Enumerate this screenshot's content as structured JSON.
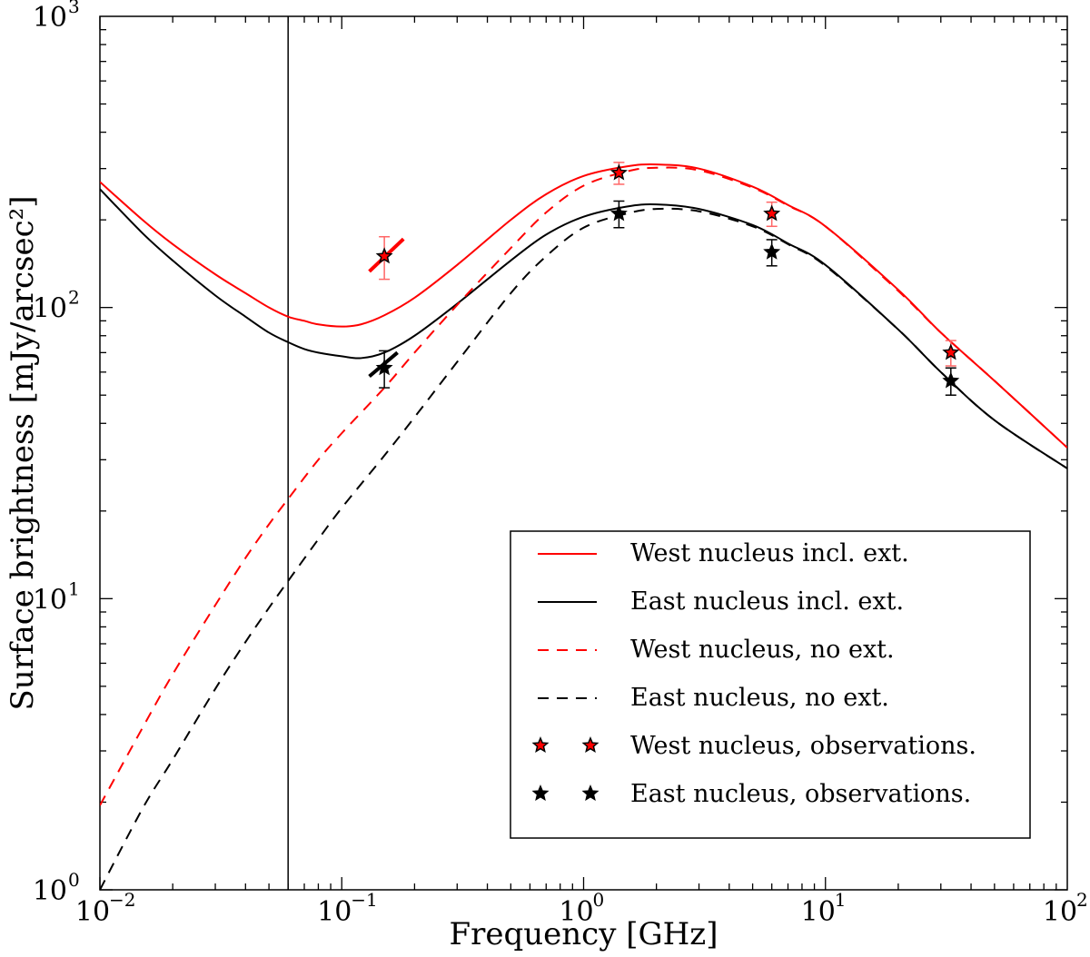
{
  "chart_data": {
    "type": "line",
    "title": "",
    "xlabel": "Frequency [GHz]",
    "ylabel": "Surface brightness [mJy/arcsec²]",
    "xscale": "log",
    "yscale": "log",
    "xlim": [
      0.01,
      100
    ],
    "ylim": [
      1,
      1000
    ],
    "x_ticks": [
      {
        "value": 0.01,
        "base": "10",
        "exp": "−2"
      },
      {
        "value": 0.1,
        "base": "10",
        "exp": "−1"
      },
      {
        "value": 1,
        "base": "10",
        "exp": "0"
      },
      {
        "value": 10,
        "base": "10",
        "exp": "1"
      },
      {
        "value": 100,
        "base": "10",
        "exp": "2"
      }
    ],
    "y_ticks": [
      {
        "value": 1,
        "base": "10",
        "exp": "0"
      },
      {
        "value": 10,
        "base": "10",
        "exp": "1"
      },
      {
        "value": 100,
        "base": "10",
        "exp": "2"
      },
      {
        "value": 1000,
        "base": "10",
        "exp": "3"
      }
    ],
    "vertical_line": {
      "x": 0.06
    },
    "legend_position": "bottom-right",
    "series": [
      {
        "name": "West nucleus incl. ext.",
        "style": "solid",
        "color": "#ff0000",
        "x": [
          0.01,
          0.015,
          0.02,
          0.03,
          0.04,
          0.05,
          0.06,
          0.07,
          0.08,
          0.1,
          0.12,
          0.15,
          0.2,
          0.3,
          0.5,
          0.7,
          1.0,
          1.5,
          2.0,
          3.0,
          5.0,
          7.0,
          10,
          20,
          30,
          50,
          100
        ],
        "y": [
          270,
          200,
          165,
          130,
          112,
          100,
          93,
          90,
          87.5,
          86,
          87.5,
          94,
          108,
          140,
          200,
          245,
          283,
          305,
          310,
          300,
          260,
          225,
          190,
          115,
          82,
          56,
          33
        ]
      },
      {
        "name": "East nucleus incl. ext.",
        "style": "solid",
        "color": "#000000",
        "x": [
          0.01,
          0.015,
          0.02,
          0.03,
          0.04,
          0.05,
          0.06,
          0.07,
          0.08,
          0.1,
          0.12,
          0.15,
          0.2,
          0.3,
          0.5,
          0.7,
          1.0,
          1.5,
          2.0,
          3.0,
          5.0,
          7.0,
          10,
          20,
          30,
          50,
          100
        ],
        "y": [
          255,
          180,
          145,
          110,
          93,
          82,
          76,
          72,
          70,
          68,
          67,
          70,
          80,
          103,
          145,
          178,
          205,
          222,
          226,
          218,
          192,
          166,
          140,
          84,
          60,
          41,
          28
        ]
      },
      {
        "name": "West nucleus, no ext.",
        "style": "dashed",
        "color": "#ff0000",
        "x": [
          0.01,
          0.015,
          0.02,
          0.03,
          0.04,
          0.05,
          0.06,
          0.08,
          0.1,
          0.15,
          0.2,
          0.3,
          0.5,
          0.7,
          1.0,
          1.5,
          2.0,
          3.0,
          5.0,
          7.0,
          10,
          20,
          30,
          50,
          100
        ],
        "y": [
          1.95,
          3.6,
          5.5,
          9.5,
          13.8,
          18.0,
          22.0,
          30.0,
          37.0,
          53.0,
          70.0,
          102,
          160,
          212,
          262,
          293,
          302,
          296,
          258,
          224,
          190,
          114,
          82,
          56,
          33
        ]
      },
      {
        "name": "East nucleus, no ext.",
        "style": "dashed",
        "color": "#000000",
        "x": [
          0.01,
          0.015,
          0.02,
          0.03,
          0.04,
          0.05,
          0.06,
          0.08,
          0.1,
          0.15,
          0.2,
          0.3,
          0.5,
          0.7,
          1.0,
          1.5,
          2.0,
          3.0,
          5.0,
          7.0,
          10,
          20,
          30,
          50,
          100
        ],
        "y": [
          1.0,
          1.9,
          2.8,
          4.9,
          7.1,
          9.3,
          11.5,
          16.0,
          20.5,
          31.0,
          42.0,
          65.0,
          112,
          150,
          188,
          210,
          218,
          214,
          190,
          165,
          139,
          84,
          60,
          41,
          28
        ]
      }
    ],
    "observations": [
      {
        "name": "West nucleus, observations.",
        "marker_fill": "#ff0000",
        "errorbar_color": "#ff6666",
        "x": [
          0.15,
          1.4,
          6.0,
          33.0
        ],
        "y": [
          150,
          290,
          210,
          70
        ],
        "yerr_low": [
          25,
          25,
          20,
          7
        ],
        "yerr_high": [
          25,
          25,
          20,
          7
        ]
      },
      {
        "name": "East nucleus, observations.",
        "marker_fill": "#000000",
        "errorbar_color": "#000000",
        "x": [
          0.15,
          1.4,
          6.0,
          33.0
        ],
        "y": [
          62,
          210,
          155,
          56
        ],
        "yerr_low": [
          9,
          22,
          16,
          6
        ],
        "yerr_high": [
          9,
          22,
          16,
          6
        ]
      }
    ],
    "spectral_slopes": [
      {
        "color": "#ff0000",
        "x": [
          0.13,
          0.18
        ],
        "y": [
          133,
          172
        ]
      },
      {
        "color": "#000000",
        "x": [
          0.13,
          0.17
        ],
        "y": [
          58,
          70
        ]
      }
    ],
    "legend": [
      {
        "label": "West nucleus incl. ext.",
        "kind": "line",
        "style": "solid",
        "color": "#ff0000"
      },
      {
        "label": "East nucleus incl. ext.",
        "kind": "line",
        "style": "solid",
        "color": "#000000"
      },
      {
        "label": "West nucleus, no ext.",
        "kind": "line",
        "style": "dashed",
        "color": "#ff0000"
      },
      {
        "label": "East nucleus, no ext.",
        "kind": "line",
        "style": "dashed",
        "color": "#000000"
      },
      {
        "label": "West nucleus, observations.",
        "kind": "marker",
        "color": "#ff0000"
      },
      {
        "label": "East nucleus, observations.",
        "kind": "marker",
        "color": "#000000"
      }
    ]
  }
}
